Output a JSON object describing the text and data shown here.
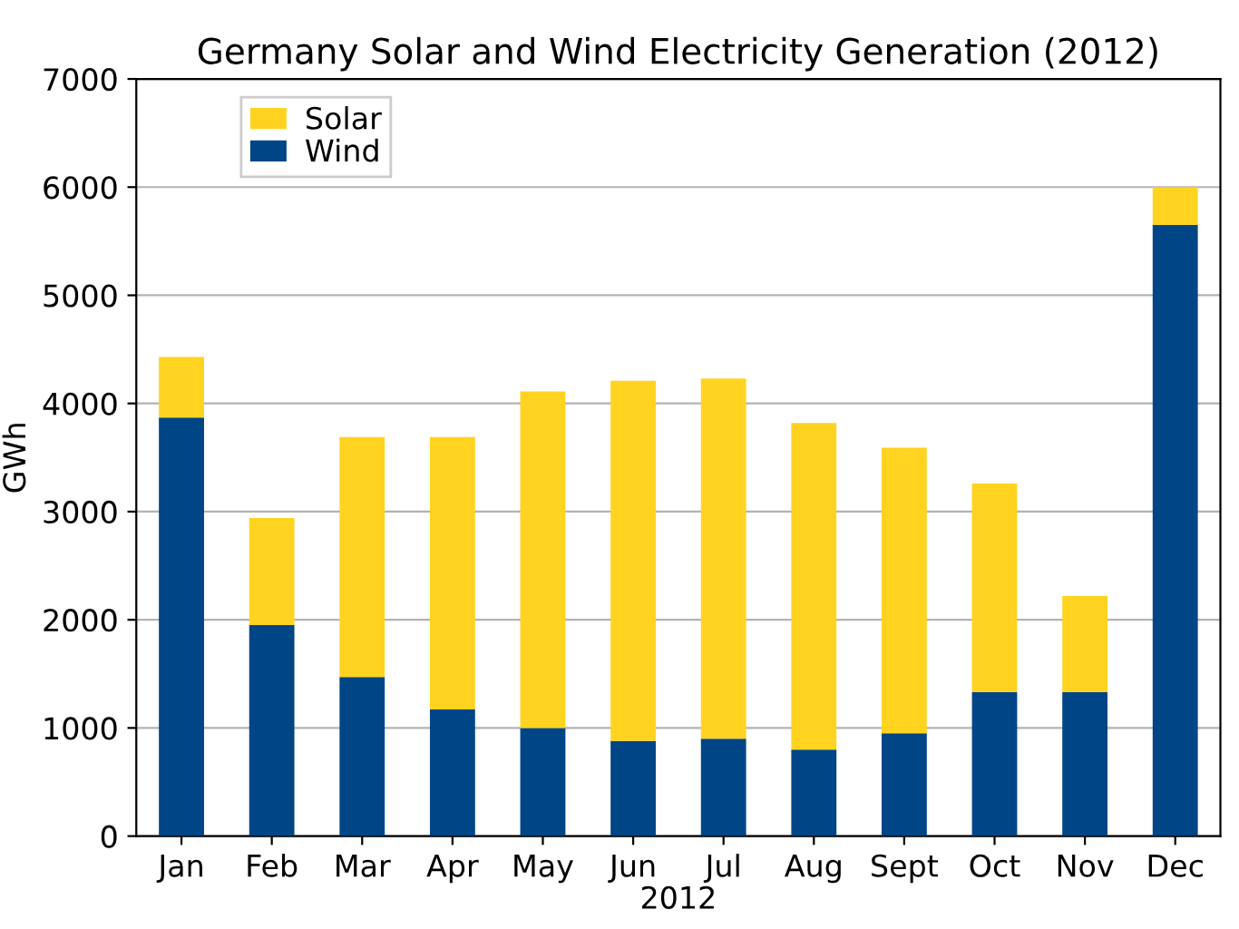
{
  "chart_data": {
    "type": "bar",
    "title": "Germany Solar and Wind Electricity Generation (2012)",
    "xlabel": "2012",
    "ylabel": "GWh",
    "categories": [
      "Jan",
      "Feb",
      "Mar",
      "Apr",
      "May",
      "Jun",
      "Jul",
      "Aug",
      "Sept",
      "Oct",
      "Nov",
      "Dec"
    ],
    "stacked": true,
    "series": [
      {
        "name": "Wind",
        "color": "#004586",
        "values": [
          3870,
          1950,
          1470,
          1170,
          1000,
          880,
          900,
          800,
          950,
          1330,
          1330,
          5650
        ]
      },
      {
        "name": "Solar",
        "color": "#ffd320",
        "values": [
          560,
          990,
          2220,
          2520,
          3110,
          3330,
          3330,
          3020,
          2640,
          1930,
          890,
          350
        ]
      }
    ],
    "ylim": [
      0,
      7000
    ],
    "yticks": [
      0,
      1000,
      2000,
      3000,
      4000,
      5000,
      6000,
      7000
    ],
    "grid": "y",
    "legend": "top left"
  }
}
